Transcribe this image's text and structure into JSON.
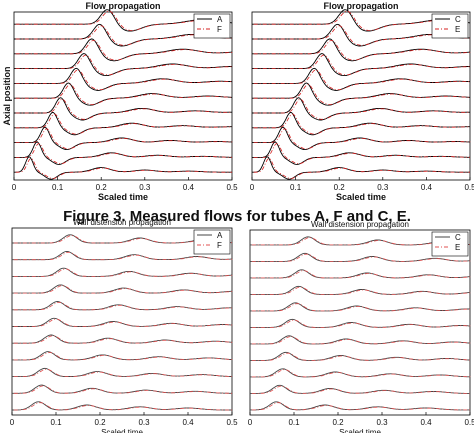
{
  "figure_caption": "Figure 3. Measured flows for tubes A, F and C, E.",
  "chart_data": [
    {
      "type": "line",
      "title": "Flow propagation",
      "xlabel": "Scaled time",
      "ylabel": "Axial position",
      "xlim": [
        0,
        0.5
      ],
      "xticks": [
        "0",
        "0.1",
        "0.2",
        "0.3",
        "0.4",
        "0.5"
      ],
      "traces": 11,
      "legend_position": "top-right",
      "grid": false,
      "series": [
        {
          "name": "A",
          "color": "#000000",
          "style": "solid"
        },
        {
          "name": "F",
          "color": "#d62020",
          "style": "dash-dot"
        }
      ]
    },
    {
      "type": "line",
      "title": "Flow propagation",
      "xlabel": "Scaled time",
      "ylabel": "",
      "xlim": [
        0,
        0.5
      ],
      "xticks": [
        "0",
        "0.1",
        "0.2",
        "0.3",
        "0.4",
        "0.5"
      ],
      "traces": 11,
      "legend_position": "top-right",
      "grid": false,
      "series": [
        {
          "name": "C",
          "color": "#000000",
          "style": "solid"
        },
        {
          "name": "E",
          "color": "#d62020",
          "style": "dash-dot"
        }
      ]
    },
    {
      "type": "line",
      "title": "Wall distension propagation",
      "xlabel": "Scaled time",
      "ylabel": "",
      "xlim": [
        0,
        0.5
      ],
      "xticks": [
        "0",
        "0.1",
        "0.2",
        "0.3",
        "0.4",
        "0.5"
      ],
      "traces": 11,
      "legend_position": "top-right",
      "grid": false,
      "series": [
        {
          "name": "A",
          "color": "#444444",
          "style": "solid"
        },
        {
          "name": "F",
          "color": "#e05050",
          "style": "dash-dot"
        }
      ]
    },
    {
      "type": "line",
      "title": "Wall distension propagation",
      "xlabel": "Scaled time",
      "ylabel": "",
      "xlim": [
        0,
        0.5
      ],
      "xticks": [
        "0",
        "0.1",
        "0.2",
        "0.3",
        "0.4",
        "0.5"
      ],
      "traces": 11,
      "legend_position": "top-right",
      "grid": false,
      "series": [
        {
          "name": "C",
          "color": "#444444",
          "style": "solid"
        },
        {
          "name": "E",
          "color": "#e05050",
          "style": "dash-dot"
        }
      ]
    }
  ]
}
